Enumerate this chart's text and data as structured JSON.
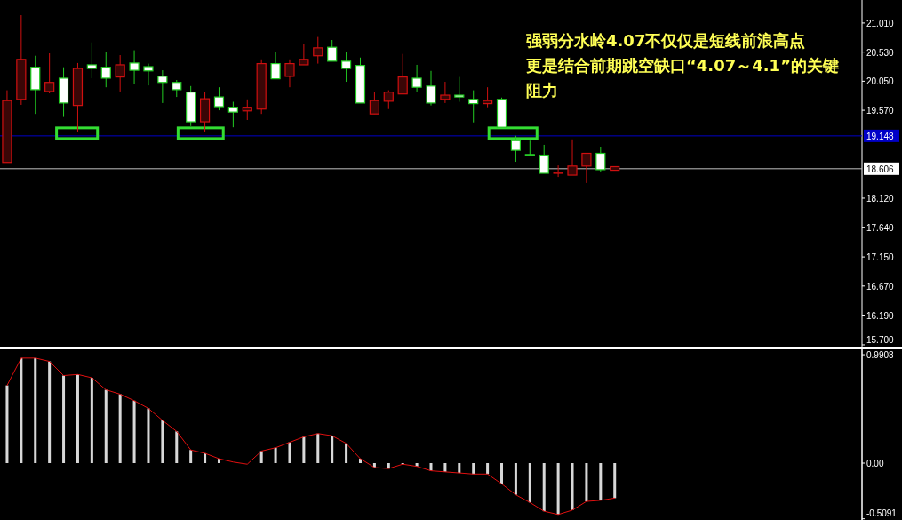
{
  "chart_data": [
    {
      "type": "candlestick",
      "categories": [
        null,
        null,
        null,
        null,
        null,
        null,
        null,
        null,
        null,
        null,
        null,
        null,
        null,
        null,
        null,
        null,
        null,
        null,
        null,
        null,
        null,
        null,
        null,
        null,
        null,
        null,
        null,
        null,
        null,
        null,
        null,
        null,
        null,
        null,
        null,
        null,
        null,
        null,
        null,
        null,
        null,
        null,
        null,
        null,
        null,
        null,
        null,
        null,
        null,
        null,
        null,
        null,
        null,
        null,
        null,
        null,
        null,
        null,
        null,
        null,
        null
      ],
      "ohlc": [
        [
          18.71,
          19.9,
          18.71,
          19.73
        ],
        [
          19.75,
          21.14,
          19.66,
          20.41
        ],
        [
          20.28,
          20.47,
          19.51,
          19.91
        ],
        [
          19.88,
          20.51,
          19.85,
          20.03
        ],
        [
          20.1,
          20.28,
          19.46,
          19.69
        ],
        [
          19.65,
          20.35,
          19.22,
          20.26
        ],
        [
          20.32,
          20.69,
          20.1,
          20.26
        ],
        [
          20.28,
          20.53,
          19.95,
          20.1
        ],
        [
          20.12,
          20.48,
          19.88,
          20.32
        ],
        [
          20.35,
          20.56,
          20.0,
          20.23
        ],
        [
          20.29,
          20.34,
          19.98,
          20.22
        ],
        [
          20.13,
          20.23,
          19.69,
          20.03
        ],
        [
          20.03,
          20.07,
          19.79,
          19.91
        ],
        [
          19.87,
          19.97,
          19.31,
          19.38
        ],
        [
          19.38,
          19.87,
          19.22,
          19.76
        ],
        [
          19.79,
          19.95,
          19.57,
          19.63
        ],
        [
          19.62,
          19.71,
          19.29,
          19.54
        ],
        [
          19.56,
          19.75,
          19.41,
          19.62
        ],
        [
          19.59,
          20.41,
          19.51,
          20.34
        ],
        [
          20.34,
          20.53,
          20.09,
          20.09
        ],
        [
          20.13,
          20.41,
          19.95,
          20.34
        ],
        [
          20.32,
          20.66,
          20.32,
          20.41
        ],
        [
          20.47,
          20.78,
          20.34,
          20.6
        ],
        [
          20.61,
          20.73,
          20.38,
          20.38
        ],
        [
          20.38,
          20.53,
          20.04,
          20.26
        ],
        [
          20.31,
          20.44,
          19.69,
          19.69
        ],
        [
          19.51,
          19.87,
          19.51,
          19.73
        ],
        [
          19.72,
          19.9,
          19.59,
          19.87
        ],
        [
          19.84,
          20.5,
          19.84,
          20.12
        ],
        [
          20.1,
          20.32,
          19.88,
          19.95
        ],
        [
          19.97,
          20.22,
          19.65,
          19.69
        ],
        [
          19.75,
          20.04,
          19.69,
          19.82
        ],
        [
          19.82,
          20.12,
          19.71,
          19.79
        ],
        [
          19.75,
          19.9,
          19.37,
          19.68
        ],
        [
          19.68,
          19.95,
          19.62,
          19.73
        ],
        [
          19.75,
          19.78,
          19.29,
          19.29
        ],
        [
          19.07,
          19.15,
          18.72,
          18.91
        ],
        [
          18.84,
          19.07,
          18.83,
          18.83
        ],
        [
          18.83,
          19.0,
          18.53,
          18.53
        ],
        [
          18.53,
          18.66,
          18.47,
          18.55
        ],
        [
          18.5,
          19.09,
          18.5,
          18.65
        ],
        [
          18.65,
          18.86,
          18.37,
          18.86
        ],
        [
          18.86,
          18.97,
          18.56,
          18.59
        ],
        [
          18.58,
          18.64,
          18.58,
          18.64
        ],
        null,
        null,
        null,
        null,
        null,
        null,
        null,
        null,
        null,
        null,
        null,
        null,
        null,
        null,
        null,
        null,
        null
      ],
      "colors": [
        "#d01010",
        "#d01010",
        "#ffffff",
        "#d01010",
        "#ffffff",
        "#d01010",
        "#ffffff",
        "#ffffff",
        "#d01010",
        "#ffffff",
        "#ffffff",
        "#ffffff",
        "#ffffff",
        "#ffffff",
        "#d01010",
        "#ffffff",
        "#ffffff",
        "#d01010",
        "#d01010",
        "#ffffff",
        "#d01010",
        "#d01010",
        "#d01010",
        "#ffffff",
        "#ffffff",
        "#ffffff",
        "#d01010",
        "#d01010",
        "#d01010",
        "#ffffff",
        "#ffffff",
        "#d01010",
        "#ffffff",
        "#ffffff",
        "#d01010",
        "#ffffff",
        "#ffffff",
        "#ffffff",
        "#ffffff",
        "#d01010",
        "#d01010",
        "#d01010",
        "#ffffff",
        "#d01010",
        null,
        null,
        null,
        null,
        null,
        null,
        null,
        null,
        null,
        null,
        null,
        null,
        null,
        null,
        null,
        null,
        null
      ],
      "ylim": [
        15.67,
        21.39
      ],
      "yticks": [
        {
          "value": 21.01,
          "label": "21.010"
        },
        {
          "value": 20.53,
          "label": "20.530"
        },
        {
          "value": 20.05,
          "label": "20.050"
        },
        {
          "value": 19.57,
          "label": "19.570"
        },
        {
          "value": 18.12,
          "label": "18.120"
        },
        {
          "value": 17.64,
          "label": "17.640"
        },
        {
          "value": 17.15,
          "label": "17.150"
        },
        {
          "value": 16.67,
          "label": "16.670"
        },
        {
          "value": 16.19,
          "label": "16.190"
        },
        {
          "value": 15.7,
          "label": "15.700"
        }
      ],
      "ref_lines": [
        {
          "axis": "y",
          "value": 19.148,
          "label": "19.148",
          "color": "#0000c8"
        },
        {
          "axis": "y",
          "value": 18.606,
          "label": "18.606",
          "color": "#c0c0c0"
        }
      ],
      "annotations": [
        " 强弱分水岭4.07不仅仅是短线前浪高点",
        "更是结合前期跳空缺口“4.07～4.1”的关键",
        "阻力"
      ],
      "tick_labels": "y",
      "grid": false
    },
    {
      "type": "bar",
      "categories": [
        null,
        null,
        null,
        null,
        null,
        null,
        null,
        null,
        null,
        null,
        null,
        null,
        null,
        null,
        null,
        null,
        null,
        null,
        null,
        null,
        null,
        null,
        null,
        null,
        null,
        null,
        null,
        null,
        null,
        null,
        null,
        null,
        null,
        null,
        null,
        null,
        null,
        null,
        null,
        null,
        null,
        null,
        null,
        null,
        null,
        null,
        null,
        null,
        null,
        null,
        null,
        null,
        null,
        null,
        null,
        null,
        null,
        null,
        null,
        null,
        null
      ],
      "series": [
        {
          "type": "bar",
          "color": "#d8d8d8",
          "values": [
            0.71,
            0.96,
            0.96,
            0.93,
            0.8,
            0.81,
            0.78,
            0.67,
            0.63,
            0.57,
            0.5,
            0.39,
            0.29,
            0.12,
            0.09,
            0.04,
            null,
            null,
            0.11,
            0.14,
            0.19,
            0.24,
            0.27,
            0.25,
            0.18,
            0.04,
            -0.04,
            -0.05,
            -0.01,
            -0.03,
            -0.07,
            -0.08,
            -0.09,
            -0.1,
            -0.1,
            -0.19,
            -0.29,
            -0.36,
            -0.44,
            -0.47,
            -0.43,
            -0.35,
            -0.34,
            -0.32,
            null,
            null,
            null,
            null,
            null,
            null,
            null,
            null,
            null,
            null,
            null,
            null,
            null,
            null,
            null,
            null,
            null
          ]
        }
      ],
      "ylim": [
        -0.52,
        1.04
      ],
      "yticks": [
        0.9908,
        {
          "value": 0,
          "label": "0.00"
        },
        -0.5091
      ],
      "tick_labels": "y",
      "grid": false
    },
    {
      "type": "line",
      "categories": [
        null,
        null,
        null,
        null,
        null,
        null,
        null,
        null,
        null,
        null,
        null,
        null,
        null,
        null,
        null,
        null,
        null,
        null,
        null,
        null,
        null,
        null,
        null,
        null,
        null,
        null,
        null,
        null,
        null,
        null,
        null,
        null,
        null,
        null,
        null,
        null,
        null,
        null,
        null,
        null,
        null,
        null,
        null,
        null,
        null,
        null,
        null,
        null,
        null,
        null,
        null,
        null,
        null,
        null,
        null,
        null,
        null,
        null,
        null,
        null,
        null
      ],
      "series": [
        {
          "type": "line",
          "color": "#e01010",
          "values": [
            0.71,
            0.96,
            0.96,
            0.93,
            0.8,
            0.81,
            0.78,
            0.67,
            0.63,
            0.57,
            0.5,
            0.39,
            0.29,
            0.12,
            0.09,
            0.04,
            0.01,
            -0.01,
            0.11,
            0.14,
            0.19,
            0.24,
            0.27,
            0.25,
            0.18,
            0.04,
            -0.04,
            -0.05,
            -0.01,
            -0.03,
            -0.07,
            -0.08,
            -0.09,
            -0.1,
            -0.1,
            -0.19,
            -0.29,
            -0.36,
            -0.44,
            -0.47,
            -0.43,
            -0.35,
            -0.34,
            -0.32,
            null,
            null,
            null,
            null,
            null,
            null,
            null,
            null,
            null,
            null,
            null,
            null,
            null,
            null,
            null,
            null,
            null
          ]
        }
      ],
      "ylim": [
        -0.52,
        1.04
      ],
      "tick_labels": false
    }
  ]
}
